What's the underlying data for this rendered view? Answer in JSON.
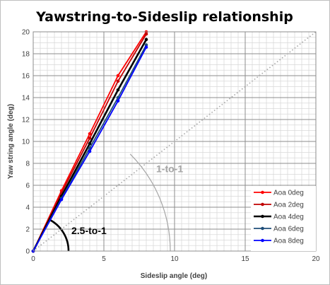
{
  "chart_data": {
    "type": "line",
    "title": "Yawstring-to-Sideslip relationship",
    "xlabel": "Sideslip angle (deg)",
    "ylabel": "Yaw string angle (deg)",
    "xlim": [
      0,
      20
    ],
    "ylim": [
      0,
      20
    ],
    "x_ticks": [
      0,
      5,
      10,
      15,
      20
    ],
    "y_ticks": [
      0,
      2,
      4,
      6,
      8,
      10,
      12,
      14,
      16,
      18,
      20
    ],
    "x_minor_step": 0.5,
    "y_minor_step": 0.5,
    "grid": true,
    "legend_position": "right-bottom",
    "series": [
      {
        "name": "Aoa 0deg",
        "color": "#ff0000",
        "x": [
          0,
          2,
          4,
          6,
          8
        ],
        "y": [
          0,
          5.5,
          10.7,
          16.0,
          20.0
        ]
      },
      {
        "name": "Aoa 2deg",
        "color": "#c00000",
        "x": [
          0,
          2,
          4,
          6,
          8
        ],
        "y": [
          0,
          5.3,
          10.3,
          15.5,
          19.8
        ]
      },
      {
        "name": "Aoa 4deg",
        "color": "#000000",
        "x": [
          0,
          2,
          4,
          6,
          8
        ],
        "y": [
          0,
          5.0,
          9.8,
          14.7,
          19.3
        ]
      },
      {
        "name": "Aoa 6deg",
        "color": "#1f4e79",
        "x": [
          0,
          2,
          4,
          6,
          8
        ],
        "y": [
          0,
          4.8,
          9.4,
          14.0,
          18.8
        ]
      },
      {
        "name": "Aoa 8deg",
        "color": "#0000ff",
        "x": [
          0,
          2,
          4,
          6,
          8
        ],
        "y": [
          0,
          4.7,
          9.1,
          13.7,
          18.6
        ]
      }
    ],
    "reference_line": {
      "x": [
        0,
        20
      ],
      "y": [
        0,
        20
      ],
      "color": "#a6a6a6",
      "style": "dotted"
    },
    "annotations": [
      {
        "text": "1-to-1",
        "color": "#a6a6a6",
        "x": 9.7,
        "y": 7.2
      },
      {
        "text": "2.5-to-1",
        "color": "#000000",
        "x": 3.1,
        "y": 2.0
      }
    ]
  }
}
